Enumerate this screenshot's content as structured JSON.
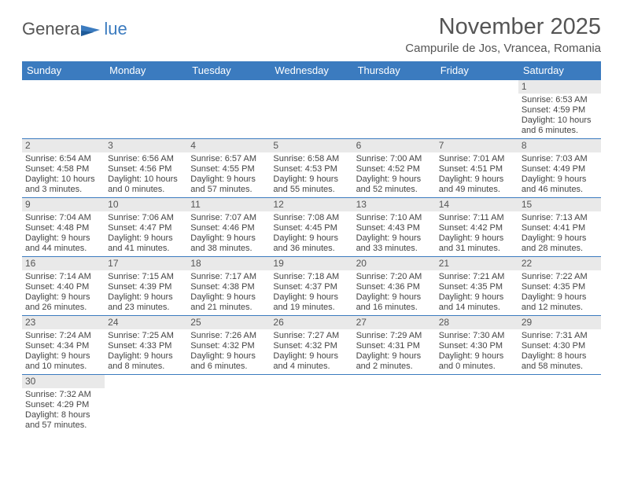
{
  "logo": {
    "gen": "Genera",
    "blue": "lue"
  },
  "header": {
    "month": "November 2025",
    "location": "Campurile de Jos, Vrancea, Romania"
  },
  "colors": {
    "header_bg": "#3b7bbf",
    "header_text": "#ffffff",
    "num_bg": "#e9e9e9",
    "text": "#444444",
    "logo_blue": "#3b7bbf"
  },
  "daynames": [
    "Sunday",
    "Monday",
    "Tuesday",
    "Wednesday",
    "Thursday",
    "Friday",
    "Saturday"
  ],
  "weeks": [
    [
      null,
      null,
      null,
      null,
      null,
      null,
      {
        "n": "1",
        "rise": "6:53 AM",
        "set": "4:59 PM",
        "dl1": "10 hours",
        "dl2": "and 6 minutes."
      }
    ],
    [
      {
        "n": "2",
        "rise": "6:54 AM",
        "set": "4:58 PM",
        "dl1": "10 hours",
        "dl2": "and 3 minutes."
      },
      {
        "n": "3",
        "rise": "6:56 AM",
        "set": "4:56 PM",
        "dl1": "10 hours",
        "dl2": "and 0 minutes."
      },
      {
        "n": "4",
        "rise": "6:57 AM",
        "set": "4:55 PM",
        "dl1": "9 hours",
        "dl2": "and 57 minutes."
      },
      {
        "n": "5",
        "rise": "6:58 AM",
        "set": "4:53 PM",
        "dl1": "9 hours",
        "dl2": "and 55 minutes."
      },
      {
        "n": "6",
        "rise": "7:00 AM",
        "set": "4:52 PM",
        "dl1": "9 hours",
        "dl2": "and 52 minutes."
      },
      {
        "n": "7",
        "rise": "7:01 AM",
        "set": "4:51 PM",
        "dl1": "9 hours",
        "dl2": "and 49 minutes."
      },
      {
        "n": "8",
        "rise": "7:03 AM",
        "set": "4:49 PM",
        "dl1": "9 hours",
        "dl2": "and 46 minutes."
      }
    ],
    [
      {
        "n": "9",
        "rise": "7:04 AM",
        "set": "4:48 PM",
        "dl1": "9 hours",
        "dl2": "and 44 minutes."
      },
      {
        "n": "10",
        "rise": "7:06 AM",
        "set": "4:47 PM",
        "dl1": "9 hours",
        "dl2": "and 41 minutes."
      },
      {
        "n": "11",
        "rise": "7:07 AM",
        "set": "4:46 PM",
        "dl1": "9 hours",
        "dl2": "and 38 minutes."
      },
      {
        "n": "12",
        "rise": "7:08 AM",
        "set": "4:45 PM",
        "dl1": "9 hours",
        "dl2": "and 36 minutes."
      },
      {
        "n": "13",
        "rise": "7:10 AM",
        "set": "4:43 PM",
        "dl1": "9 hours",
        "dl2": "and 33 minutes."
      },
      {
        "n": "14",
        "rise": "7:11 AM",
        "set": "4:42 PM",
        "dl1": "9 hours",
        "dl2": "and 31 minutes."
      },
      {
        "n": "15",
        "rise": "7:13 AM",
        "set": "4:41 PM",
        "dl1": "9 hours",
        "dl2": "and 28 minutes."
      }
    ],
    [
      {
        "n": "16",
        "rise": "7:14 AM",
        "set": "4:40 PM",
        "dl1": "9 hours",
        "dl2": "and 26 minutes."
      },
      {
        "n": "17",
        "rise": "7:15 AM",
        "set": "4:39 PM",
        "dl1": "9 hours",
        "dl2": "and 23 minutes."
      },
      {
        "n": "18",
        "rise": "7:17 AM",
        "set": "4:38 PM",
        "dl1": "9 hours",
        "dl2": "and 21 minutes."
      },
      {
        "n": "19",
        "rise": "7:18 AM",
        "set": "4:37 PM",
        "dl1": "9 hours",
        "dl2": "and 19 minutes."
      },
      {
        "n": "20",
        "rise": "7:20 AM",
        "set": "4:36 PM",
        "dl1": "9 hours",
        "dl2": "and 16 minutes."
      },
      {
        "n": "21",
        "rise": "7:21 AM",
        "set": "4:35 PM",
        "dl1": "9 hours",
        "dl2": "and 14 minutes."
      },
      {
        "n": "22",
        "rise": "7:22 AM",
        "set": "4:35 PM",
        "dl1": "9 hours",
        "dl2": "and 12 minutes."
      }
    ],
    [
      {
        "n": "23",
        "rise": "7:24 AM",
        "set": "4:34 PM",
        "dl1": "9 hours",
        "dl2": "and 10 minutes."
      },
      {
        "n": "24",
        "rise": "7:25 AM",
        "set": "4:33 PM",
        "dl1": "9 hours",
        "dl2": "and 8 minutes."
      },
      {
        "n": "25",
        "rise": "7:26 AM",
        "set": "4:32 PM",
        "dl1": "9 hours",
        "dl2": "and 6 minutes."
      },
      {
        "n": "26",
        "rise": "7:27 AM",
        "set": "4:32 PM",
        "dl1": "9 hours",
        "dl2": "and 4 minutes."
      },
      {
        "n": "27",
        "rise": "7:29 AM",
        "set": "4:31 PM",
        "dl1": "9 hours",
        "dl2": "and 2 minutes."
      },
      {
        "n": "28",
        "rise": "7:30 AM",
        "set": "4:30 PM",
        "dl1": "9 hours",
        "dl2": "and 0 minutes."
      },
      {
        "n": "29",
        "rise": "7:31 AM",
        "set": "4:30 PM",
        "dl1": "8 hours",
        "dl2": "and 58 minutes."
      }
    ],
    [
      {
        "n": "30",
        "rise": "7:32 AM",
        "set": "4:29 PM",
        "dl1": "8 hours",
        "dl2": "and 57 minutes."
      },
      null,
      null,
      null,
      null,
      null,
      null
    ]
  ],
  "labels": {
    "sunrise": "Sunrise:",
    "sunset": "Sunset:",
    "daylight": "Daylight:"
  }
}
